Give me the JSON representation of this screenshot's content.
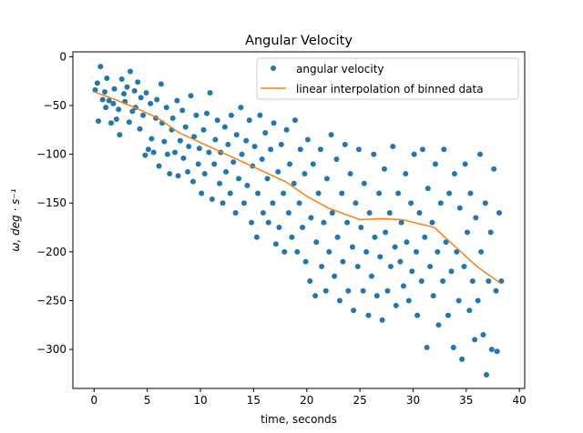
{
  "chart_data": {
    "type": "scatter",
    "title": "Angular Velocity",
    "xlabel": "time, seconds",
    "ylabel": "ω, deg · s⁻¹",
    "xlim": [
      -2,
      40.5
    ],
    "ylim": [
      -340,
      5
    ],
    "xticks": [
      0,
      5,
      10,
      15,
      20,
      25,
      30,
      35,
      40
    ],
    "yticks": [
      0,
      -50,
      -100,
      -150,
      -200,
      -250,
      -300
    ],
    "grid": false,
    "legend_position": "top-right",
    "series": [
      {
        "name": "angular velocity",
        "kind": "scatter",
        "color": "#1f77b4",
        "points": [
          [
            0.1,
            -34
          ],
          [
            0.3,
            -27
          ],
          [
            0.4,
            -66
          ],
          [
            0.6,
            -10
          ],
          [
            0.8,
            -44
          ],
          [
            1.0,
            -36
          ],
          [
            1.1,
            -52
          ],
          [
            1.2,
            -22
          ],
          [
            1.4,
            -45
          ],
          [
            1.6,
            -68
          ],
          [
            1.8,
            -48
          ],
          [
            1.9,
            -33
          ],
          [
            2.1,
            -64
          ],
          [
            2.3,
            -54
          ],
          [
            2.4,
            -80
          ],
          [
            2.6,
            -23
          ],
          [
            2.8,
            -38
          ],
          [
            2.9,
            -46
          ],
          [
            3.1,
            -31
          ],
          [
            3.3,
            -67
          ],
          [
            3.4,
            -15
          ],
          [
            3.6,
            -56
          ],
          [
            3.8,
            -35
          ],
          [
            3.9,
            -52
          ],
          [
            4.1,
            -26
          ],
          [
            4.3,
            -74
          ],
          [
            4.4,
            -42
          ],
          [
            4.6,
            -60
          ],
          [
            4.8,
            -101
          ],
          [
            4.9,
            -37
          ],
          [
            5.1,
            -95
          ],
          [
            5.3,
            -48
          ],
          [
            5.4,
            -84
          ],
          [
            5.6,
            -98
          ],
          [
            5.8,
            -63
          ],
          [
            5.9,
            -44
          ],
          [
            6.1,
            -112
          ],
          [
            6.3,
            -28
          ],
          [
            6.4,
            -68
          ],
          [
            6.6,
            -87
          ],
          [
            6.8,
            -52
          ],
          [
            6.9,
            -100
          ],
          [
            7.1,
            -120
          ],
          [
            7.3,
            -75
          ],
          [
            7.4,
            -63
          ],
          [
            7.6,
            -98
          ],
          [
            7.8,
            -45
          ],
          [
            7.9,
            -122
          ],
          [
            8.1,
            -86
          ],
          [
            8.3,
            -55
          ],
          [
            8.4,
            -104
          ],
          [
            8.6,
            -72
          ],
          [
            8.8,
            -118
          ],
          [
            8.9,
            -92
          ],
          [
            9.1,
            -40
          ],
          [
            9.3,
            -128
          ],
          [
            9.4,
            -82
          ],
          [
            9.6,
            -60
          ],
          [
            9.8,
            -110
          ],
          [
            9.9,
            -94
          ],
          [
            10.1,
            -140
          ],
          [
            10.3,
            -75
          ],
          [
            10.4,
            -120
          ],
          [
            10.6,
            -58
          ],
          [
            10.8,
            -98
          ],
          [
            10.9,
            -37
          ],
          [
            11.1,
            -146
          ],
          [
            11.3,
            -110
          ],
          [
            11.4,
            -85
          ],
          [
            11.6,
            -65
          ],
          [
            11.8,
            -130
          ],
          [
            11.9,
            -98
          ],
          [
            12.1,
            -150
          ],
          [
            12.3,
            -72
          ],
          [
            12.4,
            -118
          ],
          [
            12.6,
            -90
          ],
          [
            12.8,
            -140
          ],
          [
            12.9,
            -60
          ],
          [
            13.1,
            -108
          ],
          [
            13.3,
            -160
          ],
          [
            13.4,
            -80
          ],
          [
            13.6,
            -125
          ],
          [
            13.8,
            -52
          ],
          [
            13.9,
            -100
          ],
          [
            14.1,
            -150
          ],
          [
            14.3,
            -86
          ],
          [
            14.4,
            -132
          ],
          [
            14.6,
            -65
          ],
          [
            14.8,
            -170
          ],
          [
            14.9,
            -112
          ],
          [
            15.1,
            -92
          ],
          [
            15.3,
            -185
          ],
          [
            15.4,
            -140
          ],
          [
            15.6,
            -60
          ],
          [
            15.8,
            -105
          ],
          [
            15.9,
            -160
          ],
          [
            16.1,
            -78
          ],
          [
            16.3,
            -125
          ],
          [
            16.4,
            -170
          ],
          [
            16.6,
            -95
          ],
          [
            16.8,
            -150
          ],
          [
            16.9,
            -68
          ],
          [
            17.1,
            -192
          ],
          [
            17.3,
            -118
          ],
          [
            17.4,
            -175
          ],
          [
            17.6,
            -90
          ],
          [
            17.8,
            -140
          ],
          [
            17.9,
            -200
          ],
          [
            18.1,
            -75
          ],
          [
            18.3,
            -160
          ],
          [
            18.4,
            -110
          ],
          [
            18.6,
            -185
          ],
          [
            18.8,
            -130
          ],
          [
            18.9,
            -65
          ],
          [
            19.1,
            -200
          ],
          [
            19.3,
            -150
          ],
          [
            19.4,
            -95
          ],
          [
            19.6,
            -175
          ],
          [
            19.8,
            -120
          ],
          [
            19.9,
            -210
          ],
          [
            20.1,
            -85
          ],
          [
            20.3,
            -230
          ],
          [
            20.4,
            -165
          ],
          [
            20.6,
            -110
          ],
          [
            20.8,
            -245
          ],
          [
            20.9,
            -190
          ],
          [
            21.1,
            -140
          ],
          [
            21.3,
            -95
          ],
          [
            21.4,
            -215
          ],
          [
            21.6,
            -170
          ],
          [
            21.8,
            -240
          ],
          [
            21.9,
            -125
          ],
          [
            22.1,
            -200
          ],
          [
            22.3,
            -80
          ],
          [
            22.4,
            -160
          ],
          [
            22.6,
            -225
          ],
          [
            22.8,
            -105
          ],
          [
            22.9,
            -185
          ],
          [
            23.1,
            -250
          ],
          [
            23.3,
            -140
          ],
          [
            23.4,
            -210
          ],
          [
            23.6,
            -90
          ],
          [
            23.8,
            -170
          ],
          [
            23.9,
            -240
          ],
          [
            24.1,
            -120
          ],
          [
            24.3,
            -195
          ],
          [
            24.4,
            -260
          ],
          [
            24.6,
            -150
          ],
          [
            24.8,
            -215
          ],
          [
            24.9,
            -95
          ],
          [
            25.1,
            -175
          ],
          [
            25.3,
            -240
          ],
          [
            25.4,
            -130
          ],
          [
            25.6,
            -200
          ],
          [
            25.8,
            -265
          ],
          [
            25.9,
            -160
          ],
          [
            26.1,
            -225
          ],
          [
            26.3,
            -100
          ],
          [
            26.4,
            -185
          ],
          [
            26.6,
            -245
          ],
          [
            26.8,
            -140
          ],
          [
            26.9,
            -205
          ],
          [
            27.1,
            -270
          ],
          [
            27.3,
            -115
          ],
          [
            27.4,
            -180
          ],
          [
            27.6,
            -240
          ],
          [
            27.8,
            -160
          ],
          [
            27.9,
            -215
          ],
          [
            28.1,
            -92
          ],
          [
            28.3,
            -195
          ],
          [
            28.4,
            -255
          ],
          [
            28.6,
            -140
          ],
          [
            28.8,
            -210
          ],
          [
            28.9,
            -170
          ],
          [
            29.1,
            -235
          ],
          [
            29.3,
            -120
          ],
          [
            29.4,
            -190
          ],
          [
            29.6,
            -250
          ],
          [
            29.8,
            -150
          ],
          [
            29.9,
            -220
          ],
          [
            30.1,
            -100
          ],
          [
            30.3,
            -200
          ],
          [
            30.4,
            -265
          ],
          [
            30.6,
            -160
          ],
          [
            30.8,
            -230
          ],
          [
            30.9,
            -95
          ],
          [
            31.1,
            -185
          ],
          [
            31.3,
            -298
          ],
          [
            31.4,
            -135
          ],
          [
            31.6,
            -215
          ],
          [
            31.8,
            -170
          ],
          [
            31.9,
            -245
          ],
          [
            32.1,
            -110
          ],
          [
            32.3,
            -200
          ],
          [
            32.4,
            -275
          ],
          [
            32.6,
            -150
          ],
          [
            32.8,
            -230
          ],
          [
            32.9,
            -95
          ],
          [
            33.1,
            -190
          ],
          [
            33.3,
            -265
          ],
          [
            33.4,
            -140
          ],
          [
            33.6,
            -220
          ],
          [
            33.8,
            -298
          ],
          [
            33.9,
            -120
          ],
          [
            34.1,
            -200
          ],
          [
            34.3,
            -250
          ],
          [
            34.4,
            -155
          ],
          [
            34.6,
            -310
          ],
          [
            34.8,
            -215
          ],
          [
            34.9,
            -110
          ],
          [
            35.1,
            -180
          ],
          [
            35.3,
            -260
          ],
          [
            35.4,
            -140
          ],
          [
            35.6,
            -230
          ],
          [
            35.8,
            -290
          ],
          [
            35.9,
            -165
          ],
          [
            36.1,
            -250
          ],
          [
            36.3,
            -100
          ],
          [
            36.4,
            -200
          ],
          [
            36.6,
            -285
          ],
          [
            36.8,
            -150
          ],
          [
            36.9,
            -326
          ],
          [
            37.1,
            -230
          ],
          [
            37.3,
            -180
          ],
          [
            37.4,
            -300
          ],
          [
            37.6,
            -115
          ],
          [
            37.8,
            -240
          ],
          [
            37.9,
            -302
          ],
          [
            38.1,
            -160
          ],
          [
            38.3,
            -230
          ]
        ]
      },
      {
        "name": "linear interpolation of binned data",
        "kind": "line",
        "color": "#ff7f0e",
        "points": [
          [
            0,
            -36
          ],
          [
            2,
            -44
          ],
          [
            4,
            -53
          ],
          [
            6,
            -63
          ],
          [
            8,
            -78
          ],
          [
            10,
            -88
          ],
          [
            12,
            -98
          ],
          [
            14,
            -108
          ],
          [
            16,
            -118
          ],
          [
            18,
            -128
          ],
          [
            20,
            -143
          ],
          [
            22,
            -155
          ],
          [
            24,
            -163
          ],
          [
            25,
            -167
          ],
          [
            27,
            -166
          ],
          [
            29,
            -167
          ],
          [
            32,
            -175
          ],
          [
            34,
            -195
          ],
          [
            36,
            -215
          ],
          [
            38.2,
            -232
          ]
        ]
      }
    ]
  }
}
